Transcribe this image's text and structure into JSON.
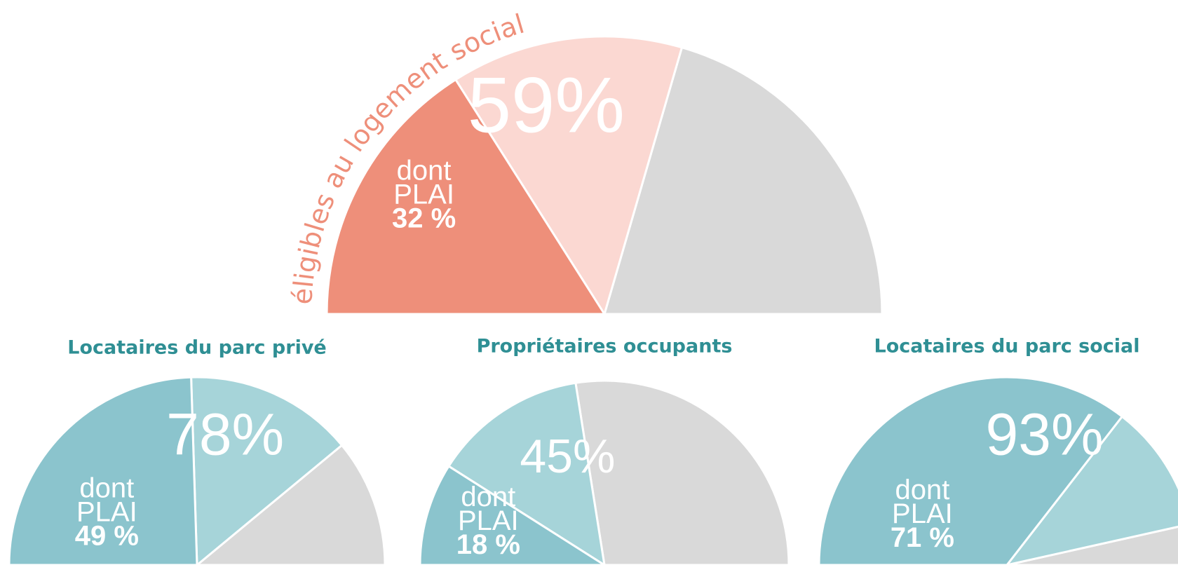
{
  "chart_data": [
    {
      "type": "semi-pie",
      "arc_label": "éligibles au logement social",
      "values": [
        59,
        32
      ],
      "value_labels": [
        "59%",
        "32 %"
      ],
      "sub_label": [
        "dont",
        "PLAI"
      ],
      "colors": [
        "#fbd8d2",
        "#ee8f7a",
        "#d9d9d9"
      ]
    },
    {
      "type": "semi-pie",
      "title": "Locataires du parc privé",
      "values": [
        78,
        49
      ],
      "value_labels": [
        "78%",
        "49 %"
      ],
      "sub_label": [
        "dont",
        "PLAI"
      ],
      "colors": [
        "#a6d4d9",
        "#8bc4cd",
        "#d9d9d9"
      ]
    },
    {
      "type": "semi-pie",
      "title": "Propriétaires occupants",
      "values": [
        45,
        18
      ],
      "value_labels": [
        "45%",
        "18 %"
      ],
      "sub_label": [
        "dont",
        "PLAI"
      ],
      "colors": [
        "#a6d4d9",
        "#8bc4cd",
        "#d9d9d9"
      ]
    },
    {
      "type": "semi-pie",
      "title": "Locataires du parc social",
      "values": [
        93,
        71
      ],
      "value_labels": [
        "93%",
        "71 %"
      ],
      "sub_label": [
        "dont",
        "PLAI"
      ],
      "colors": [
        "#a6d4d9",
        "#8bc4cd",
        "#d9d9d9"
      ]
    }
  ]
}
